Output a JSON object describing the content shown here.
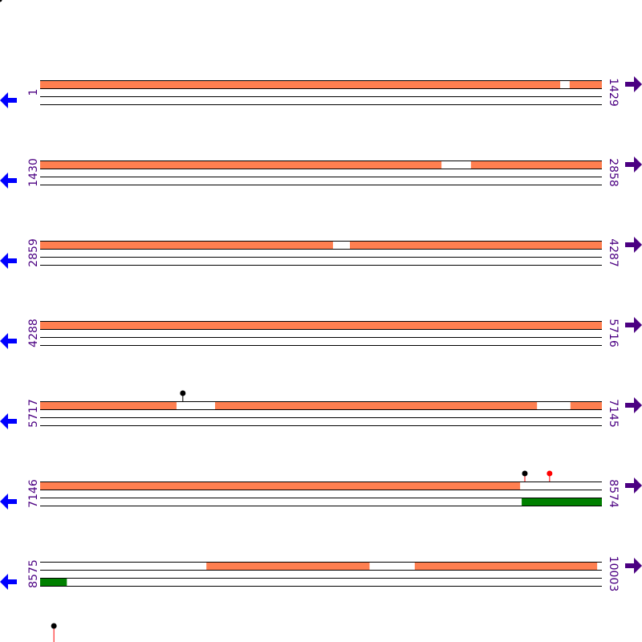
{
  "colors": {
    "feature": "#ff7f50",
    "secondary": "#008000",
    "pin_default": "#000000",
    "pin_highlight": "#ff0000",
    "label": "#4b0082",
    "arrow_left": "#0000ff",
    "arrow_right": "#4b0082"
  },
  "rows": [
    {
      "start": "1",
      "end": "1429",
      "top": [
        [
          1,
          1323
        ],
        [
          1348,
          1429
        ]
      ],
      "bottom": [],
      "pins": []
    },
    {
      "start": "1430",
      "end": "2858",
      "top": [
        [
          1430,
          2450
        ],
        [
          2526,
          2858
        ]
      ],
      "bottom": [],
      "pins": []
    },
    {
      "start": "2859",
      "end": "4287",
      "top": [
        [
          2859,
          3603
        ],
        [
          3647,
          4287
        ]
      ],
      "bottom": [],
      "pins": []
    },
    {
      "start": "4288",
      "end": "5716",
      "top": [
        [
          4288,
          5716
        ]
      ],
      "bottom": [],
      "pins": []
    },
    {
      "start": "5717",
      "end": "7145",
      "top": [
        [
          5717,
          6063
        ],
        [
          6162,
          6980
        ],
        [
          7066,
          7145
        ]
      ],
      "bottom": [],
      "pins": [
        {
          "pos": 6080,
          "color": "#000000",
          "stem": "#000000"
        }
      ]
    },
    {
      "start": "7146",
      "end": "8574",
      "top": [
        [
          7146,
          8366
        ]
      ],
      "bottom": [
        [
          8371,
          8574
        ]
      ],
      "pins": [
        {
          "pos": 8379,
          "color": "#000000",
          "stem": "#ff0000"
        },
        {
          "pos": 8442,
          "color": "#ff0000",
          "stem": "#ff0000"
        }
      ]
    },
    {
      "start": "8575",
      "end": "10003",
      "top": [
        [
          8998,
          9412
        ],
        [
          9528,
          9991
        ]
      ],
      "bottom": [
        [
          8575,
          8642
        ]
      ],
      "pins": []
    }
  ],
  "extra_pins": [
    {
      "pos": 8610,
      "color": "#000000",
      "stem": "#ff0000"
    }
  ]
}
